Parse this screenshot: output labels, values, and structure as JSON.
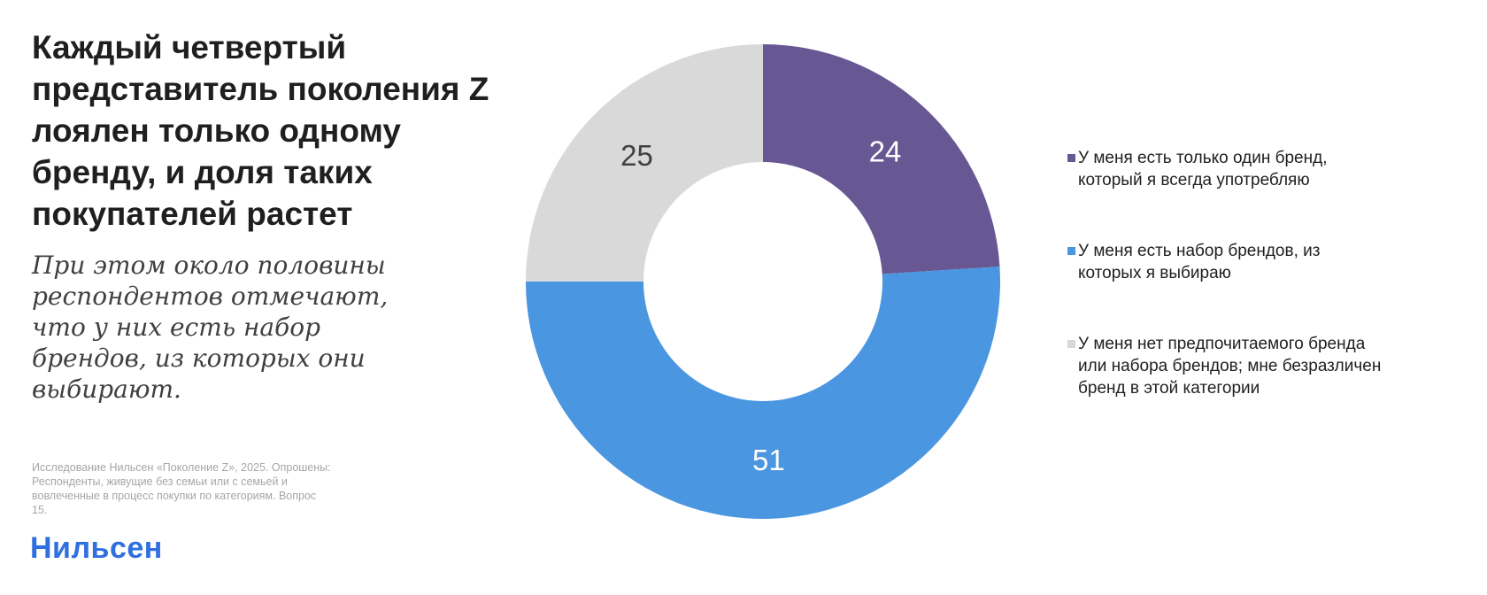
{
  "title": "Каждый четвертый представитель поколения Z лоялен только одному бренду, и доля таких покупателей растет",
  "subtitle": "При этом около половины респондентов отмечают, что у них есть набор брендов, из которых они выбирают.",
  "source": "Исследование Нильсен «Поколение Z», 2025. Опрошены: Респонденты, живущие без семьи или с семьей и вовлеченные в процесс покупки по категориям. Вопрос 15.",
  "logo": "Нильсен",
  "chart_data": {
    "type": "pie",
    "donut": true,
    "categories": [
      "У меня есть только один бренд, который я всегда употребляю",
      "У меня есть набор брендов, из которых я выбираю",
      "У меня нет предпочитаемого бренда или набора брендов; мне безразличен бренд в этой категории"
    ],
    "values": [
      24,
      51,
      25
    ],
    "data_labels": [
      "24",
      "51",
      "25"
    ],
    "colors": [
      "#675793",
      "#4a96e0",
      "#d9d9d9"
    ],
    "label_colors": [
      "#ffffff",
      "#ffffff",
      "#404040"
    ],
    "legend_position": "right"
  }
}
